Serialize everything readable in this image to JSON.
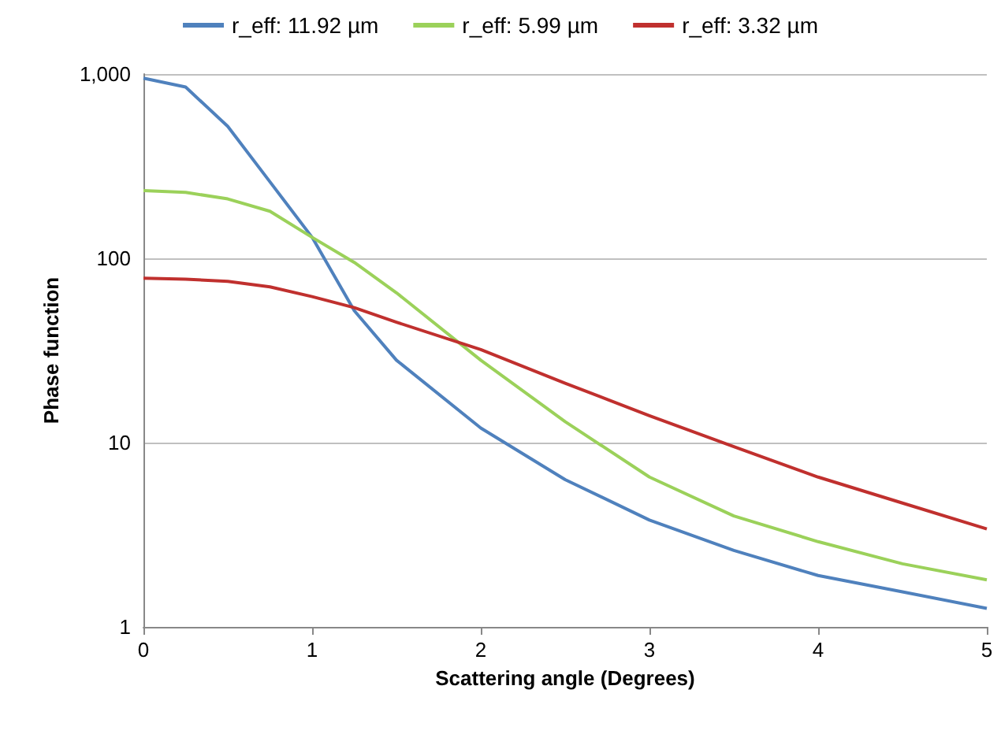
{
  "chart_data": {
    "type": "line",
    "xlabel": "Scattering angle (Degrees)",
    "ylabel": "Phase function",
    "x": [
      0,
      0.25,
      0.5,
      0.75,
      1,
      1.25,
      1.5,
      2,
      2.5,
      3,
      3.5,
      4,
      4.5,
      5
    ],
    "series": [
      {
        "name": "r_eff: 11.92 µm",
        "color": "#4f81bd",
        "values": [
          950,
          850,
          520,
          260,
          130,
          52,
          28,
          12,
          6.3,
          3.8,
          2.6,
          1.9,
          1.55,
          1.26
        ]
      },
      {
        "name": "r_eff: 5.99 µm",
        "color": "#9bd15a",
        "values": [
          233,
          228,
          210,
          180,
          130,
          95,
          65,
          28,
          13,
          6.5,
          4,
          2.9,
          2.2,
          1.8
        ]
      },
      {
        "name": "r_eff: 3.32 µm",
        "color": "#c0302e",
        "values": [
          78,
          77,
          75,
          70,
          62,
          54,
          45,
          32,
          21,
          14,
          9.5,
          6.5,
          4.7,
          3.4
        ]
      }
    ],
    "xlim": [
      0,
      5
    ],
    "xticks": [
      0,
      1,
      2,
      3,
      4,
      5
    ],
    "ylim": [
      1,
      1000
    ],
    "yticks": [
      1,
      10,
      100,
      {
        "value": 1000,
        "label": "1,000"
      }
    ],
    "log": "y",
    "grid": "y",
    "legend": "top",
    "marker": "none",
    "line_style": "solid"
  }
}
